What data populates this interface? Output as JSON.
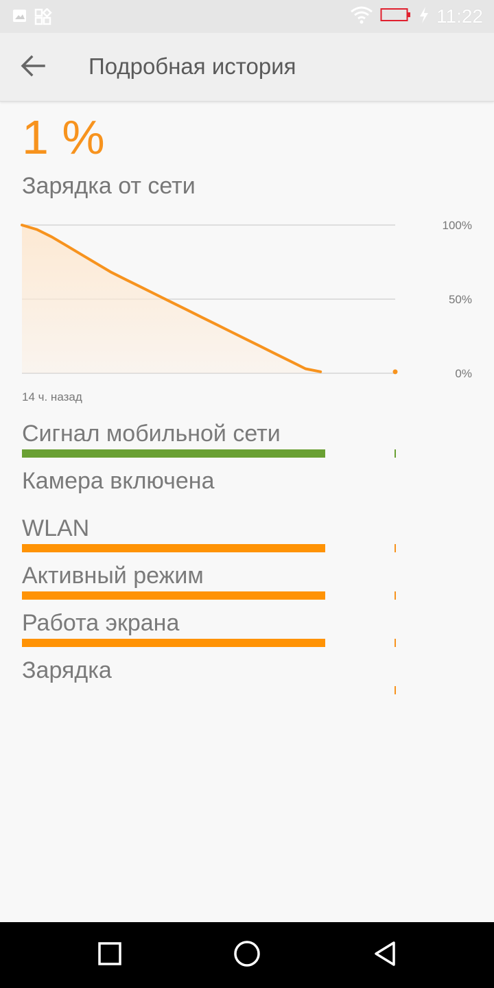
{
  "status_bar": {
    "time": "11:22",
    "icons": [
      "image-icon",
      "apps-icon",
      "wifi-icon",
      "battery-low-icon",
      "charging-bolt-icon"
    ]
  },
  "app_bar": {
    "back_icon": "back-arrow-icon",
    "title": "Подробная история"
  },
  "battery": {
    "percent_text": "1 %",
    "status": "Зарядка от сети"
  },
  "chart_data": {
    "type": "area",
    "title": "",
    "xlabel": "14 ч. назад",
    "ylabel": "",
    "y_ticks": [
      "100%",
      "50%",
      "0%"
    ],
    "ylim": [
      0,
      100
    ],
    "x": [
      0,
      1,
      2,
      3,
      4,
      5,
      6,
      7,
      8,
      9,
      10,
      11,
      12,
      13,
      14,
      15,
      16,
      17,
      18,
      19,
      20
    ],
    "xlim": [
      0,
      25
    ],
    "values": [
      100,
      97,
      92,
      86,
      80,
      74,
      68,
      63,
      58,
      53,
      48,
      43,
      38,
      33,
      28,
      23,
      18,
      13,
      8,
      3,
      1
    ],
    "end_point": {
      "x": 25,
      "y": 1
    },
    "line_color": "#f7931e",
    "fill_color": "#fde9d3",
    "grid": true
  },
  "history_rows": [
    {
      "label": "Сигнал мобильной сети",
      "bar": true,
      "bar_color": "#6aa033",
      "tick_color": "#6aa033"
    },
    {
      "label": "Камера включена",
      "bar": false,
      "bar_color": "",
      "tick_color": ""
    },
    {
      "label": "WLAN",
      "bar": true,
      "bar_color": "#ff9305",
      "tick_color": "#f7931e"
    },
    {
      "label": "Активный режим",
      "bar": true,
      "bar_color": "#ff9305",
      "tick_color": "#f7931e"
    },
    {
      "label": "Работа экрана",
      "bar": true,
      "bar_color": "#ff9305",
      "tick_color": "#f7931e"
    },
    {
      "label": "Зарядка",
      "bar": false,
      "bar_color": "",
      "tick_color": "#f7931e"
    }
  ],
  "nav_bar": {
    "recents_icon": "square-recents-icon",
    "home_icon": "circle-home-icon",
    "back_icon": "triangle-back-icon"
  },
  "colors": {
    "accent": "#f7931e",
    "mobile_signal": "#6aa033",
    "low_battery": "#e0202e"
  }
}
